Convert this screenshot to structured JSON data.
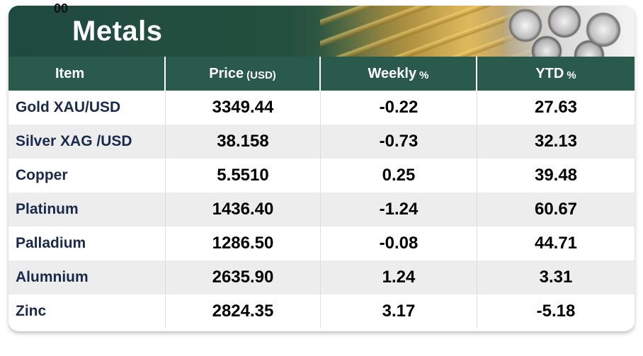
{
  "banner": {
    "corner_code": "00",
    "title": "Metals"
  },
  "table": {
    "headers": {
      "item": "Item",
      "price": "Price",
      "price_unit": "(USD)",
      "weekly": "Weekly",
      "weekly_unit": "%",
      "ytd": "YTD",
      "ytd_unit": "%"
    },
    "rows": [
      {
        "item": "Gold XAU/USD",
        "price": "3349.44",
        "weekly": "-0.22",
        "ytd": "27.63"
      },
      {
        "item": "Silver XAG /USD",
        "price": "38.158",
        "weekly": "-0.73",
        "ytd": "32.13"
      },
      {
        "item": "Copper",
        "price": "5.5510",
        "weekly": "0.25",
        "ytd": "39.48"
      },
      {
        "item": "Platinum",
        "price": "1436.40",
        "weekly": "-1.24",
        "ytd": "60.67"
      },
      {
        "item": "Palladium",
        "price": "1286.50",
        "weekly": "-0.08",
        "ytd": "44.71"
      },
      {
        "item": "Alumnium",
        "price": "2635.90",
        "weekly": "1.24",
        "ytd": "3.31"
      },
      {
        "item": "Zinc",
        "price": "2824.35",
        "weekly": "3.17",
        "ytd": "-5.18"
      }
    ]
  },
  "colors": {
    "header_green": "#2a5a4c",
    "banner_green": "#1f4a3f",
    "item_text": "#1a2a4a"
  }
}
